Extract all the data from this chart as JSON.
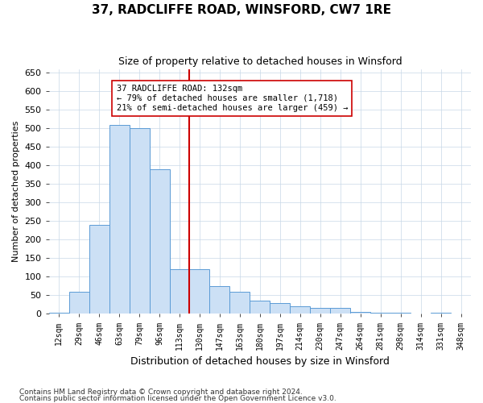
{
  "title": "37, RADCLIFFE ROAD, WINSFORD, CW7 1RE",
  "subtitle": "Size of property relative to detached houses in Winsford",
  "xlabel": "Distribution of detached houses by size in Winsford",
  "ylabel": "Number of detached properties",
  "footnote1": "Contains HM Land Registry data © Crown copyright and database right 2024.",
  "footnote2": "Contains public sector information licensed under the Open Government Licence v3.0.",
  "bins": [
    "12sqm",
    "29sqm",
    "46sqm",
    "63sqm",
    "79sqm",
    "96sqm",
    "113sqm",
    "130sqm",
    "147sqm",
    "163sqm",
    "180sqm",
    "197sqm",
    "214sqm",
    "230sqm",
    "247sqm",
    "264sqm",
    "281sqm",
    "298sqm",
    "314sqm",
    "331sqm",
    "348sqm"
  ],
  "values": [
    3,
    60,
    240,
    510,
    500,
    390,
    120,
    120,
    75,
    60,
    35,
    30,
    20,
    15,
    15,
    5,
    3,
    3,
    0,
    3,
    1
  ],
  "bar_color": "#cce0f5",
  "bar_edge_color": "#5b9bd5",
  "property_bin_index": 7,
  "vline_color": "#cc0000",
  "annotation_text": "37 RADCLIFFE ROAD: 132sqm\n← 79% of detached houses are smaller (1,718)\n21% of semi-detached houses are larger (459) →",
  "annotation_box_color": "#ffffff",
  "annotation_box_edge": "#cc0000",
  "ylim": [
    0,
    660
  ],
  "yticks": [
    0,
    50,
    100,
    150,
    200,
    250,
    300,
    350,
    400,
    450,
    500,
    550,
    600,
    650
  ],
  "background_color": "#ffffff",
  "grid_color": "#c8d8e8"
}
